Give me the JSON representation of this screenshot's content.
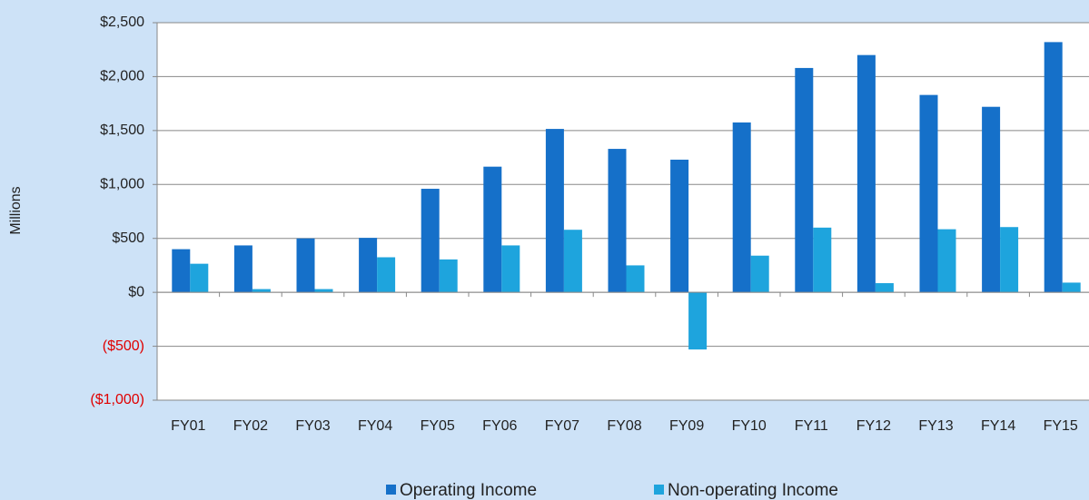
{
  "chart_data": {
    "type": "bar",
    "y_label": "Millions",
    "categories": [
      "FY01",
      "FY02",
      "FY03",
      "FY04",
      "FY05",
      "FY06",
      "FY07",
      "FY08",
      "FY09",
      "FY10",
      "FY11",
      "FY12",
      "FY13",
      "FY14",
      "FY15"
    ],
    "series": [
      {
        "name": "Operating Income",
        "color": "#1570c9",
        "values": [
          400,
          435,
          500,
          505,
          960,
          1165,
          1515,
          1330,
          1230,
          1575,
          2080,
          2200,
          1830,
          1720,
          2320
        ]
      },
      {
        "name": "Non-operating Income",
        "color": "#1ea4dd",
        "values": [
          265,
          30,
          30,
          325,
          305,
          435,
          580,
          250,
          -530,
          340,
          600,
          85,
          585,
          605,
          90
        ]
      }
    ],
    "ylim": [
      -1000,
      2500
    ],
    "yticks": [
      {
        "value": -1000,
        "label": "($1,000)"
      },
      {
        "value": -500,
        "label": "($500)"
      },
      {
        "value": 0,
        "label": "$0"
      },
      {
        "value": 500,
        "label": "$500"
      },
      {
        "value": 1000,
        "label": "$1,000"
      },
      {
        "value": 1500,
        "label": "$1,500"
      },
      {
        "value": 2000,
        "label": "$2,000"
      },
      {
        "value": 2500,
        "label": "$2,500"
      }
    ],
    "grid": true,
    "legend": "bottom"
  }
}
